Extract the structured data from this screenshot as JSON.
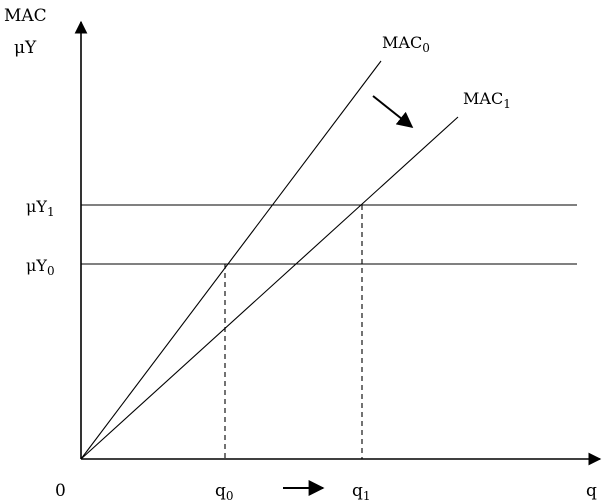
{
  "y_axis_label": {
    "line1": "MAC",
    "line2": "μY"
  },
  "x_axis_label": "q",
  "origin_label": "0",
  "curves": [
    {
      "base": "MAC",
      "sub": "0"
    },
    {
      "base": "MAC",
      "sub": "1"
    }
  ],
  "levels": [
    {
      "base": "μY",
      "sub": "1"
    },
    {
      "base": "μY",
      "sub": "0"
    }
  ],
  "quantities": [
    {
      "base": "q",
      "sub": "0"
    },
    {
      "base": "q",
      "sub": "1"
    }
  ],
  "colors": {
    "ink": "#000000",
    "background": "#ffffff"
  }
}
